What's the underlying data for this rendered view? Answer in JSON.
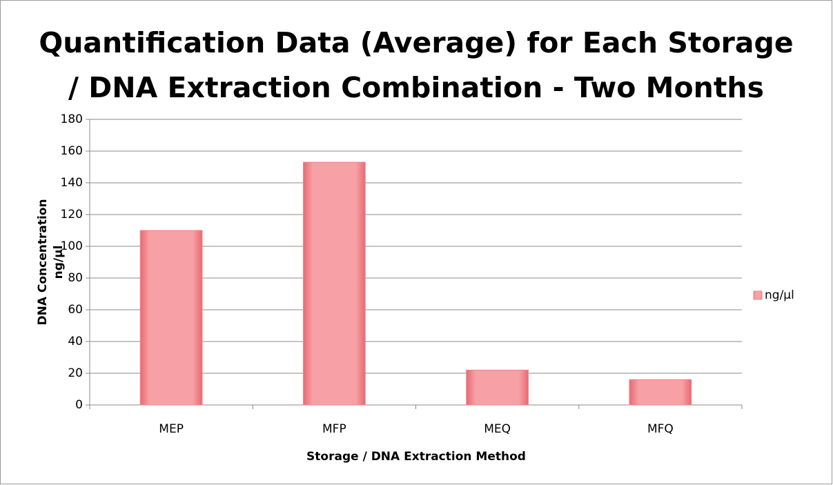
{
  "chart_data": {
    "type": "bar",
    "title": [
      "Quantification Data (Average) for Each Storage",
      "/ DNA Extraction Combination - Two Months"
    ],
    "x_label": "Storage / DNA Extraction Method",
    "y_label": [
      "DNA Concentration",
      "ng/µl"
    ],
    "categories": [
      "MEP",
      "MFP",
      "MEQ",
      "MFQ"
    ],
    "series": [
      {
        "name": "ng/µl",
        "color": "#f4848c",
        "values": [
          110,
          153,
          22,
          16
        ]
      }
    ],
    "ylim": [
      0,
      180
    ],
    "yticks": [
      0,
      20,
      40,
      60,
      80,
      100,
      120,
      140,
      160,
      180
    ],
    "grid": true,
    "legend": "right"
  }
}
